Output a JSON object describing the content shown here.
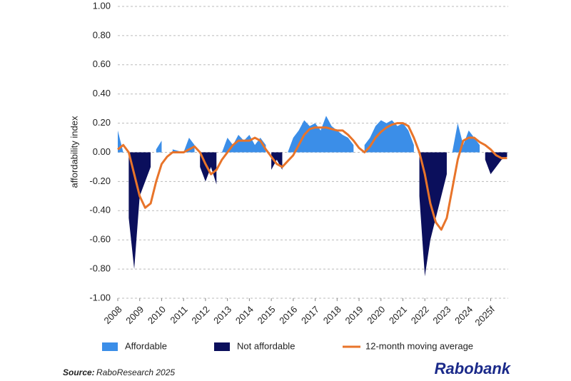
{
  "chart_data": {
    "type": "area",
    "y_label": "affordability index",
    "source_label": "Source:",
    "source": "RaboResearch 2025",
    "logo": "Rabobank",
    "x": [
      2008,
      2008.25,
      2008.5,
      2008.75,
      2009,
      2009.25,
      2009.5,
      2009.75,
      2010,
      2010.25,
      2010.5,
      2010.75,
      2011,
      2011.25,
      2011.5,
      2011.75,
      2012,
      2012.25,
      2012.5,
      2012.75,
      2013,
      2013.25,
      2013.5,
      2013.75,
      2014,
      2014.25,
      2014.5,
      2014.75,
      2015,
      2015.25,
      2015.5,
      2015.75,
      2016,
      2016.25,
      2016.5,
      2016.75,
      2017,
      2017.25,
      2017.5,
      2017.75,
      2018,
      2018.25,
      2018.5,
      2018.75,
      2019,
      2019.25,
      2019.5,
      2019.75,
      2020,
      2020.25,
      2020.5,
      2020.75,
      2021,
      2021.25,
      2021.5,
      2021.75,
      2022,
      2022.25,
      2022.5,
      2022.75,
      2023,
      2023.25,
      2023.5,
      2023.75,
      2024,
      2024.25,
      2024.5,
      2024.75,
      2025,
      2025.25,
      2025.5,
      2025.75
    ],
    "series": [
      {
        "name": "Affordable",
        "color": "#3b8ee8",
        "values": [
          0.15,
          0,
          null,
          null,
          null,
          null,
          null,
          0.02,
          0.08,
          null,
          0.02,
          0.01,
          0,
          0.1,
          0.05,
          null,
          null,
          null,
          null,
          0,
          0.1,
          0.05,
          0.12,
          0.08,
          0.12,
          0.05,
          0.1,
          0.05,
          null,
          null,
          null,
          0,
          0.1,
          0.15,
          0.22,
          0.18,
          0.2,
          0.15,
          0.25,
          0.18,
          0.15,
          0.12,
          0.1,
          0.05,
          null,
          0.05,
          0.1,
          0.18,
          0.22,
          0.2,
          0.22,
          0.18,
          0.2,
          0.15,
          0.05,
          null,
          null,
          null,
          null,
          null,
          null,
          0,
          0.2,
          0.05,
          0.15,
          0.1,
          0.05,
          null,
          null,
          null,
          null,
          null
        ]
      },
      {
        "name": "Not affordable",
        "color": "#0b0f5c",
        "values": [
          null,
          null,
          -0.45,
          -0.8,
          -0.3,
          -0.2,
          -0.1,
          null,
          null,
          -0.05,
          null,
          null,
          null,
          null,
          null,
          -0.1,
          -0.2,
          -0.1,
          -0.22,
          null,
          null,
          null,
          null,
          null,
          null,
          null,
          null,
          null,
          -0.12,
          -0.05,
          -0.12,
          null,
          null,
          null,
          null,
          null,
          null,
          null,
          null,
          null,
          null,
          null,
          null,
          null,
          -0.08,
          null,
          null,
          null,
          null,
          null,
          null,
          null,
          null,
          null,
          null,
          -0.3,
          -0.85,
          -0.6,
          -0.45,
          -0.3,
          -0.15,
          null,
          null,
          null,
          null,
          null,
          null,
          -0.05,
          -0.15,
          -0.1,
          -0.05,
          -0.03
        ]
      },
      {
        "name": "12-month moving average",
        "color": "#e8742a",
        "type": "line",
        "values": [
          0.02,
          0.05,
          0,
          -0.15,
          -0.3,
          -0.38,
          -0.35,
          -0.2,
          -0.08,
          -0.03,
          0,
          0,
          0,
          0.02,
          0.04,
          0,
          -0.08,
          -0.15,
          -0.12,
          -0.05,
          0,
          0.05,
          0.08,
          0.08,
          0.08,
          0.1,
          0.08,
          0.02,
          -0.03,
          -0.08,
          -0.1,
          -0.06,
          -0.02,
          0.05,
          0.12,
          0.16,
          0.17,
          0.17,
          0.17,
          0.16,
          0.15,
          0.15,
          0.12,
          0.08,
          0.03,
          0,
          0.04,
          0.1,
          0.14,
          0.17,
          0.19,
          0.2,
          0.2,
          0.18,
          0.1,
          0,
          -0.15,
          -0.35,
          -0.48,
          -0.53,
          -0.45,
          -0.25,
          -0.05,
          0.08,
          0.1,
          0.1,
          0.07,
          0.05,
          0.02,
          -0.02,
          -0.04,
          -0.04
        ]
      }
    ],
    "xlim": [
      2008,
      2025.8
    ],
    "xticks": [
      2008,
      2009,
      2010,
      2011,
      2012,
      2013,
      2014,
      2015,
      2016,
      2017,
      2018,
      2019,
      2020,
      2021,
      2022,
      2023,
      2024,
      {
        "value": 2025,
        "label": "2025f"
      }
    ],
    "ylim": [
      -1,
      1
    ],
    "yticks": [
      {
        "value": -1,
        "label": "-1.00"
      },
      {
        "value": -0.8,
        "label": "-0.80"
      },
      {
        "value": -0.6,
        "label": "-0.60"
      },
      {
        "value": -0.4,
        "label": "-0.40"
      },
      {
        "value": -0.2,
        "label": "-0.20"
      },
      {
        "value": 0,
        "label": "0.00"
      },
      {
        "value": 0.2,
        "label": "0.20"
      },
      {
        "value": 0.4,
        "label": "0.40"
      },
      {
        "value": 0.6,
        "label": "0.60"
      },
      {
        "value": 0.8,
        "label": "0.80"
      },
      {
        "value": 1,
        "label": "1.00"
      }
    ],
    "grid": true
  }
}
